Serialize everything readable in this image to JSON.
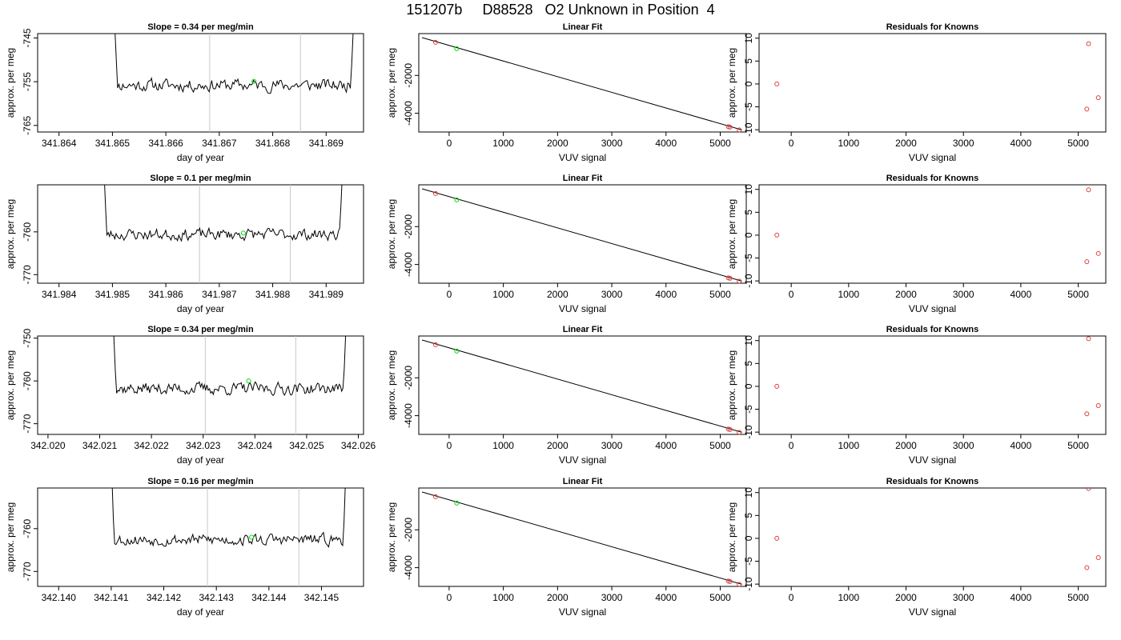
{
  "title": "151207b     D88528   O2 Unknown in Position  4",
  "colors": {
    "trace": "#000000",
    "unknown_point": "#00dd00",
    "known_point": "#e04040",
    "marker_line": "#c8c8c8",
    "fit_line": "#000000"
  },
  "chart_data": [
    {
      "type": "line",
      "title": "Slope =  0.34  per meg/min",
      "xlabel": "day of year",
      "ylabel": "approx. per meg",
      "xlim": [
        341.8636,
        341.8697
      ],
      "ylim": [
        -766.5,
        -744
      ],
      "xticks": [
        "341.864",
        "341.865",
        "341.866",
        "341.867",
        "341.868",
        "341.869"
      ],
      "yticks": [
        "-745",
        "-755",
        "-765"
      ],
      "vlines": [
        341.86682,
        341.86852
      ],
      "green_point": [
        341.86765,
        -754.9
      ],
      "baseline": -755.8,
      "amp": 2.2,
      "rise_start": 341.86495,
      "rise_end": 341.8696,
      "seed": 11
    },
    {
      "type": "line",
      "title": "Slope =  0.1  per meg/min",
      "xlabel": "day of year",
      "ylabel": "approx. per meg",
      "xlim": [
        341.9836,
        341.9897
      ],
      "ylim": [
        -772,
        -749
      ],
      "xticks": [
        "341.984",
        "341.985",
        "341.986",
        "341.987",
        "341.988",
        "341.989"
      ],
      "yticks": [
        "-760",
        "-770"
      ],
      "vlines": [
        341.98663,
        341.98833
      ],
      "green_point": [
        341.98745,
        -760.3
      ],
      "baseline": -760.6,
      "amp": 2.1,
      "rise_start": 341.98475,
      "rise_end": 341.9894,
      "seed": 23
    },
    {
      "type": "line",
      "title": "Slope =  0.34  per meg/min",
      "xlabel": "day of year",
      "ylabel": "approx. per meg",
      "xlim": [
        342.0198,
        342.0261
      ],
      "ylim": [
        -772.5,
        -749.5
      ],
      "xticks": [
        "342.020",
        "342.021",
        "342.022",
        "342.023",
        "342.024",
        "342.025",
        "342.026"
      ],
      "yticks": [
        "-750",
        "-760",
        "-770"
      ],
      "vlines": [
        342.02304,
        342.02479
      ],
      "green_point": [
        342.02388,
        -760.0
      ],
      "baseline": -761.8,
      "amp": 2.2,
      "rise_start": 342.02118,
      "rise_end": 342.02585,
      "seed": 37
    },
    {
      "type": "line",
      "title": "Slope =  0.16  per meg/min",
      "xlabel": "day of year",
      "ylabel": "approx. per meg",
      "xlim": [
        342.1396,
        342.1458
      ],
      "ylim": [
        -773.5,
        -750.5
      ],
      "xticks": [
        "342.140",
        "342.141",
        "342.142",
        "342.143",
        "342.144",
        "342.145"
      ],
      "yticks": [
        "-760",
        "-770"
      ],
      "vlines": [
        342.14283,
        342.14457
      ],
      "green_point": [
        342.14367,
        -762.0
      ],
      "baseline": -762.6,
      "amp": 2.1,
      "rise_start": 342.14092,
      "rise_end": 342.14555,
      "seed": 53
    },
    {
      "type": "scatter",
      "title": "Linear Fit",
      "xlabel": "VUV signal",
      "ylabel": "approx. per meg",
      "xlim": [
        -560,
        5480
      ],
      "ylim": [
        -4990,
        210
      ],
      "xticks": [
        "0",
        "1000",
        "2000",
        "3000",
        "4000",
        "5000"
      ],
      "yticks": [
        "-2000",
        "-4000"
      ],
      "fit": [
        [
          -500,
          0
        ],
        [
          5400,
          -4880
        ]
      ],
      "knowns": [
        [
          -250,
          -250
        ],
        [
          5150,
          -4710
        ],
        [
          5180,
          -4730
        ],
        [
          5350,
          -4880
        ]
      ],
      "unknown": [
        140,
        -590
      ]
    },
    {
      "type": "scatter",
      "title": "Linear Fit",
      "xlabel": "VUV signal",
      "ylabel": "approx. per meg",
      "xlim": [
        -560,
        5480
      ],
      "ylim": [
        -4990,
        210
      ],
      "xticks": [
        "0",
        "1000",
        "2000",
        "3000",
        "4000",
        "5000"
      ],
      "yticks": [
        "-2000",
        "-4000"
      ],
      "fit": [
        [
          -500,
          0
        ],
        [
          5400,
          -4880
        ]
      ],
      "knowns": [
        [
          -250,
          -250
        ],
        [
          5150,
          -4710
        ],
        [
          5180,
          -4730
        ],
        [
          5350,
          -4880
        ]
      ],
      "unknown": [
        140,
        -590
      ]
    },
    {
      "type": "scatter",
      "title": "Linear Fit",
      "xlabel": "VUV signal",
      "ylabel": "approx. per meg",
      "xlim": [
        -560,
        5480
      ],
      "ylim": [
        -4990,
        210
      ],
      "xticks": [
        "0",
        "1000",
        "2000",
        "3000",
        "4000",
        "5000"
      ],
      "yticks": [
        "-2000",
        "-4000"
      ],
      "fit": [
        [
          -500,
          0
        ],
        [
          5400,
          -4880
        ]
      ],
      "knowns": [
        [
          -250,
          -250
        ],
        [
          5150,
          -4710
        ],
        [
          5180,
          -4730
        ],
        [
          5350,
          -4880
        ]
      ],
      "unknown": [
        140,
        -590
      ]
    },
    {
      "type": "scatter",
      "title": "Linear Fit",
      "xlabel": "VUV signal",
      "ylabel": "approx. per meg",
      "xlim": [
        -560,
        5480
      ],
      "ylim": [
        -4990,
        210
      ],
      "xticks": [
        "0",
        "1000",
        "2000",
        "3000",
        "4000",
        "5000"
      ],
      "yticks": [
        "-2000",
        "-4000"
      ],
      "fit": [
        [
          -500,
          0
        ],
        [
          5400,
          -4880
        ]
      ],
      "knowns": [
        [
          -250,
          -250
        ],
        [
          5150,
          -4710
        ],
        [
          5180,
          -4730
        ],
        [
          5350,
          -4880
        ]
      ],
      "unknown": [
        140,
        -590
      ]
    },
    {
      "type": "scatter",
      "title": "Residuals for Knowns",
      "xlabel": "VUV signal",
      "ylabel": "approx. per meg",
      "xlim": [
        -560,
        5480
      ],
      "ylim": [
        -10.5,
        11
      ],
      "xticks": [
        "0",
        "1000",
        "2000",
        "3000",
        "4000",
        "5000"
      ],
      "yticks": [
        "-10",
        "-5",
        "0",
        "5",
        "10"
      ],
      "points": [
        [
          -250,
          0.0
        ],
        [
          5150,
          -5.5
        ],
        [
          5180,
          8.8
        ],
        [
          5350,
          -3.0
        ]
      ]
    },
    {
      "type": "scatter",
      "title": "Residuals for Knowns",
      "xlabel": "VUV signal",
      "ylabel": "approx. per meg",
      "xlim": [
        -560,
        5480
      ],
      "ylim": [
        -10.5,
        11
      ],
      "xticks": [
        "0",
        "1000",
        "2000",
        "3000",
        "4000",
        "5000"
      ],
      "yticks": [
        "-10",
        "-5",
        "0",
        "5",
        "10"
      ],
      "points": [
        [
          -250,
          0.0
        ],
        [
          5150,
          -5.8
        ],
        [
          5180,
          9.9
        ],
        [
          5350,
          -4.0
        ]
      ]
    },
    {
      "type": "scatter",
      "title": "Residuals for Knowns",
      "xlabel": "VUV signal",
      "ylabel": "approx. per meg",
      "xlim": [
        -560,
        5480
      ],
      "ylim": [
        -10.5,
        11
      ],
      "xticks": [
        "0",
        "1000",
        "2000",
        "3000",
        "4000",
        "5000"
      ],
      "yticks": [
        "-10",
        "-5",
        "0",
        "5",
        "10"
      ],
      "points": [
        [
          -250,
          0.0
        ],
        [
          5150,
          -6.0
        ],
        [
          5180,
          10.4
        ],
        [
          5350,
          -4.2
        ]
      ]
    },
    {
      "type": "scatter",
      "title": "Residuals for Knowns",
      "xlabel": "VUV signal",
      "ylabel": "approx. per meg",
      "xlim": [
        -560,
        5480
      ],
      "ylim": [
        -10.5,
        11
      ],
      "xticks": [
        "0",
        "1000",
        "2000",
        "3000",
        "4000",
        "5000"
      ],
      "yticks": [
        "-10",
        "-5",
        "0",
        "5",
        "10"
      ],
      "points": [
        [
          -250,
          0.0
        ],
        [
          5150,
          -6.4
        ],
        [
          5180,
          10.9
        ],
        [
          5350,
          -4.2
        ]
      ]
    }
  ]
}
